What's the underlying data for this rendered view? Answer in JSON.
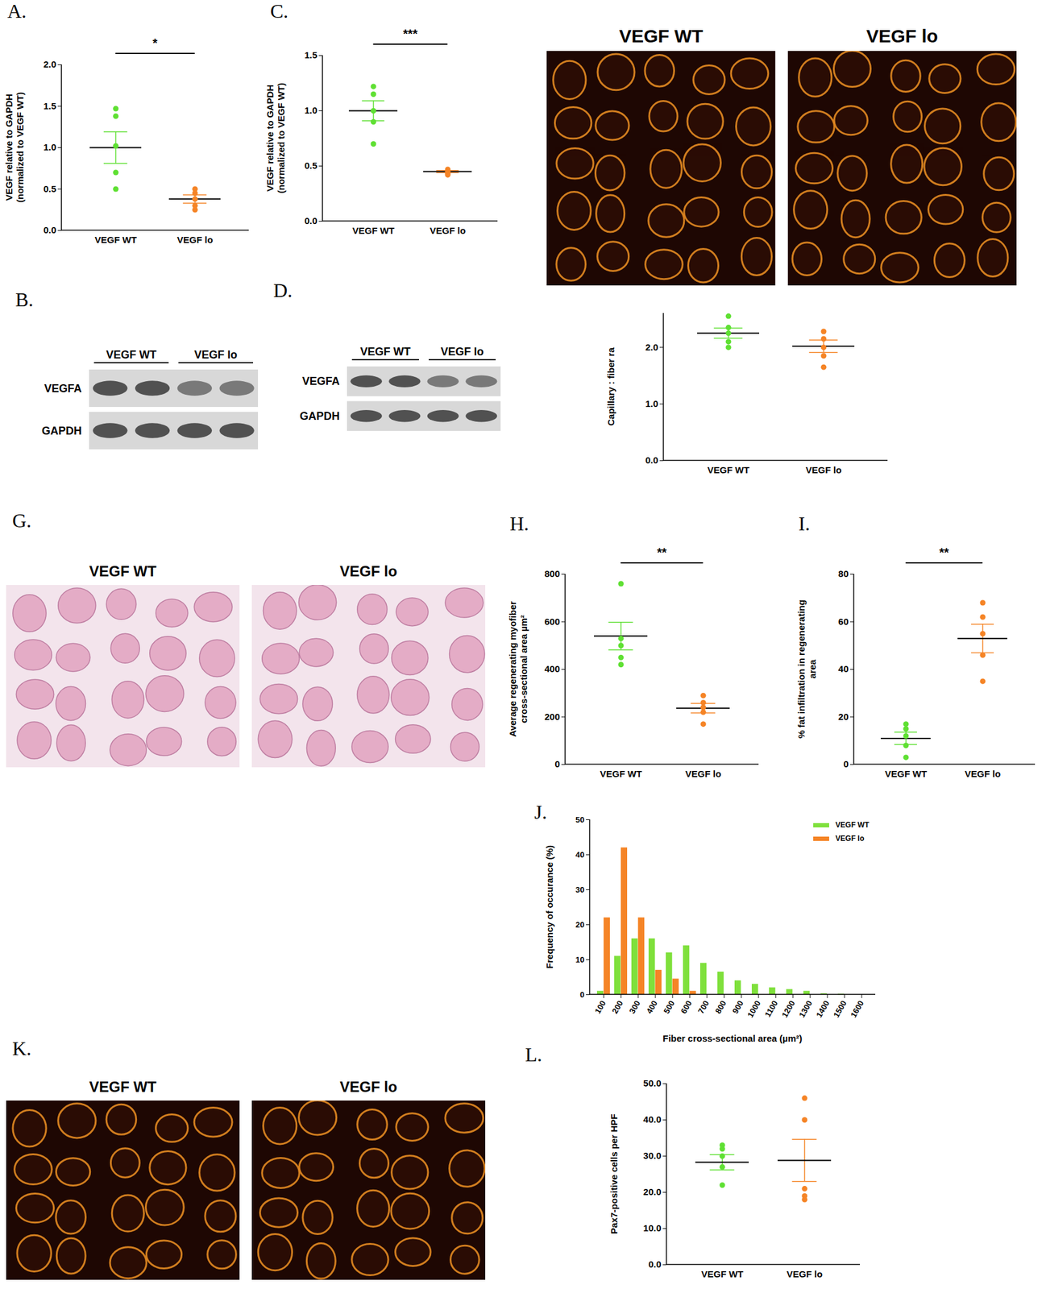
{
  "chart_data": [
    {
      "type": "scatter",
      "title": "A.",
      "categories": [
        "VEGF WT",
        "VEGF lo"
      ],
      "colors": [
        "#5fe033",
        "#f58426"
      ],
      "points": [
        [
          1.47,
          1.38,
          1.02,
          0.7,
          0.5
        ],
        [
          0.5,
          0.45,
          0.38,
          0.3,
          0.25
        ]
      ],
      "means": [
        1.0,
        0.38
      ],
      "sem": [
        0.19,
        0.05
      ],
      "ylabel": "VEGF relative to GAPDH (normalized to VEGF WT)",
      "ylim": [
        0,
        2.0
      ],
      "yticks": [
        {
          "value": 0,
          "label": "0.0"
        },
        {
          "value": 0.5,
          "label": "0.5"
        },
        {
          "value": 1.0,
          "label": "1.0"
        },
        {
          "value": 1.5,
          "label": "1.5"
        },
        {
          "value": 2.0,
          "label": "2.0"
        }
      ],
      "annotations": [
        "*"
      ]
    },
    {
      "type": "scatter",
      "title": "C.",
      "categories": [
        "VEGF WT",
        "VEGF lo"
      ],
      "colors": [
        "#5fe033",
        "#f58426"
      ],
      "points": [
        [
          1.22,
          1.15,
          1.0,
          0.9,
          0.7
        ],
        [
          0.47,
          0.45,
          0.44,
          0.43,
          0.42
        ]
      ],
      "means": [
        1.0,
        0.45
      ],
      "sem": [
        0.09,
        0.01
      ],
      "ylabel": "VEGF relative to GAPDH (normalized to VEGF WT)",
      "ylim": [
        0,
        1.5
      ],
      "yticks": [
        {
          "value": 0,
          "label": "0.0"
        },
        {
          "value": 0.5,
          "label": "0.5"
        },
        {
          "value": 1.0,
          "label": "1.0"
        },
        {
          "value": 1.5,
          "label": "1.5"
        }
      ],
      "annotations": [
        "***"
      ]
    },
    {
      "type": "micrograph",
      "labels": [
        "VEGF WT",
        "VEGF lo"
      ],
      "color": "#1e0703"
    },
    {
      "type": "blot",
      "title": "B.",
      "lanes": [
        "VEGF WT",
        "VEGF lo"
      ],
      "rows": [
        "VEGFA",
        "GAPDH"
      ]
    },
    {
      "type": "blot",
      "title": "D.",
      "lanes": [
        "VEGF WT",
        "VEGF lo"
      ],
      "rows": [
        "VEGFA",
        "GAPDH"
      ]
    },
    {
      "type": "scatter",
      "categories": [
        "VEGF WT",
        "VEGF lo"
      ],
      "colors": [
        "#5fe033",
        "#f58426"
      ],
      "points": [
        [
          2.55,
          2.35,
          2.25,
          2.1,
          2.0
        ],
        [
          2.28,
          2.15,
          2.0,
          1.85,
          1.65
        ]
      ],
      "means": [
        2.25,
        2.02
      ],
      "sem": [
        0.09,
        0.11
      ],
      "ylabel": "Capillary : fiber ra",
      "ylim": [
        0,
        2.6
      ],
      "yticks": [
        {
          "value": 0,
          "label": "0.0"
        },
        {
          "value": 1.0,
          "label": "1.0"
        },
        {
          "value": 2.0,
          "label": "2.0"
        }
      ]
    },
    {
      "type": "micrograph",
      "title": "G.",
      "labels": [
        "VEGF WT",
        "VEGF lo"
      ],
      "color": "#f3e4ec"
    },
    {
      "type": "scatter",
      "title": "H.",
      "categories": [
        "VEGF WT",
        "VEGF lo"
      ],
      "colors": [
        "#5fe033",
        "#f58426"
      ],
      "points": [
        [
          760,
          530,
          500,
          450,
          420
        ],
        [
          290,
          260,
          240,
          220,
          170
        ]
      ],
      "means": [
        540,
        237
      ],
      "sem": [
        58,
        20
      ],
      "ylabel": "Average regenerating myofiber cross-sectional area µm²",
      "ylim": [
        0,
        800
      ],
      "yticks": [
        0,
        200,
        400,
        600,
        800
      ],
      "annotations": [
        "**"
      ]
    },
    {
      "type": "scatter",
      "title": "I.",
      "categories": [
        "VEGF WT",
        "VEGF lo"
      ],
      "colors": [
        "#5fe033",
        "#f58426"
      ],
      "points": [
        [
          17,
          15,
          12,
          8,
          3
        ],
        [
          68,
          62,
          55,
          46,
          35
        ]
      ],
      "means": [
        11,
        53
      ],
      "sem": [
        2.6,
        6
      ],
      "ylabel": "% fat infiltration in regenerating area",
      "ylim": [
        0,
        80
      ],
      "yticks": [
        0,
        20,
        40,
        60,
        80
      ],
      "annotations": [
        "**"
      ]
    },
    {
      "type": "bar",
      "title": "J.",
      "categories": [
        100,
        200,
        300,
        400,
        500,
        600,
        700,
        800,
        900,
        1000,
        1100,
        1200,
        1300,
        1400,
        1500,
        1600
      ],
      "series": [
        {
          "name": "VEGF WT",
          "color": "#7fe03c",
          "values": [
            1,
            11,
            16,
            16,
            12,
            14,
            9,
            6.5,
            4,
            3,
            2,
            1.5,
            1,
            0.3,
            0.2,
            0
          ]
        },
        {
          "name": "VEGF lo",
          "color": "#f58426",
          "values": [
            22,
            42,
            22,
            7,
            4.5,
            1,
            0,
            0,
            0,
            0,
            0,
            0,
            0,
            0,
            0,
            0
          ]
        }
      ],
      "xlabel": "Fiber cross-sectional area (µm²)",
      "ylabel": "Frequency of occurance (%)",
      "ylim": [
        0,
        50
      ],
      "yticks": [
        0,
        10,
        20,
        30,
        40,
        50
      ],
      "legend": "top-right"
    },
    {
      "type": "micrograph",
      "title": "K.",
      "labels": [
        "VEGF WT",
        "VEGF lo"
      ],
      "color": "#1e0703"
    },
    {
      "type": "scatter",
      "title": "L.",
      "categories": [
        "VEGF WT",
        "VEGF lo"
      ],
      "colors": [
        "#5fe033",
        "#f58426"
      ],
      "points": [
        [
          33,
          32,
          30,
          27,
          22
        ],
        [
          46,
          40,
          21,
          19,
          18
        ]
      ],
      "means": [
        28.3,
        28.8
      ],
      "sem": [
        2.1,
        5.8
      ],
      "ylabel": "Pax7-positive cells per HPF",
      "ylim": [
        0,
        50
      ],
      "yticks": [
        {
          "value": 0,
          "label": "0.0"
        },
        {
          "value": 10,
          "label": "10.0"
        },
        {
          "value": 20,
          "label": "20.0"
        },
        {
          "value": 30,
          "label": "30.0"
        },
        {
          "value": 40,
          "label": "40.0"
        },
        {
          "value": 50,
          "label": "50.0"
        }
      ]
    }
  ]
}
